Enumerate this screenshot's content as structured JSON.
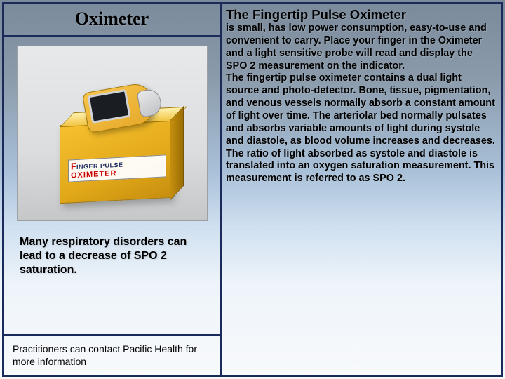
{
  "left": {
    "title": "Oximeter",
    "box_label_line1a": "F",
    "box_label_line1b": "INGER PULSE",
    "box_label_line2": "OXIMETER",
    "caption": "Many respiratory disorders can lead to a decrease of SPO 2 saturation.",
    "footnote": "Practitioners can contact Pacific Health for more information"
  },
  "right": {
    "heading": "The Fingertip Pulse Oximeter",
    "para1": "is small, has low power consumption, easy-to-use and convenient to carry.  Place your finger in the Oximeter and a light sensitive probe will read and display the SPO 2 measurement on the indicator.",
    "para2": "The fingertip pulse oximeter contains a dual light source and photo-detector.  Bone, tissue, pigmentation, and venous vessels normally absorb a constant amount of light over time.  The arteriolar bed normally pulsates and absorbs variable amounts of light during systole and diastole, as blood volume increases and decreases.  The ratio of light absorbed as systole and diastole is translated into an oxygen saturation measurement.  This measurement is referred to as SPO 2."
  },
  "colors": {
    "frame_border": "#1a2a5a",
    "box_fill": "#e2a91a",
    "device_fill": "#e6a92a"
  }
}
